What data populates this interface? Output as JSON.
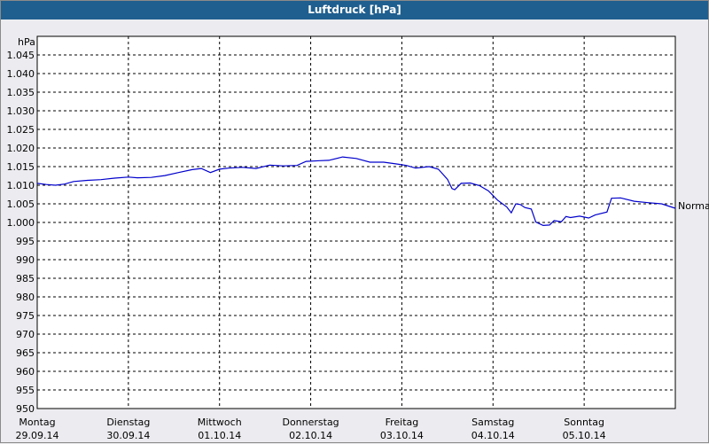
{
  "window": {
    "title": "Luftdruck [hPa]"
  },
  "chart_data": {
    "type": "line",
    "title": "Luftdruck [hPa]",
    "ylabel": "hPa",
    "ylim": [
      950,
      1050
    ],
    "yticks": [
      "1.045",
      "1.040",
      "1.035",
      "1.030",
      "1.025",
      "1.020",
      "1.015",
      "1.010",
      "1.005",
      "1.000",
      "995",
      "990",
      "985",
      "980",
      "975",
      "970",
      "965",
      "960",
      "955",
      "950"
    ],
    "ytick_values": [
      1045,
      1040,
      1035,
      1030,
      1025,
      1020,
      1015,
      1010,
      1005,
      1000,
      995,
      990,
      985,
      980,
      975,
      970,
      965,
      960,
      955,
      950
    ],
    "xlim": [
      0,
      7
    ],
    "x_categories": [
      {
        "day": "Montag",
        "date": "29.09.14"
      },
      {
        "day": "Dienstag",
        "date": "30.09.14"
      },
      {
        "day": "Mittwoch",
        "date": "01.10.14"
      },
      {
        "day": "Donnerstag",
        "date": "02.10.14"
      },
      {
        "day": "Freitag",
        "date": "03.10.14"
      },
      {
        "day": "Samstag",
        "date": "04.10.14"
      },
      {
        "day": "Sonntag",
        "date": "05.10.14"
      }
    ],
    "grid": true,
    "reference_line": {
      "label": "Normal"
    },
    "series": [
      {
        "color": "#0000cc",
        "points": [
          [
            0.0,
            1010.5
          ],
          [
            0.1,
            1010.2
          ],
          [
            0.2,
            1010.0
          ],
          [
            0.3,
            1010.3
          ],
          [
            0.4,
            1011.0
          ],
          [
            0.55,
            1011.3
          ],
          [
            0.7,
            1011.5
          ],
          [
            0.85,
            1011.9
          ],
          [
            1.0,
            1012.2
          ],
          [
            1.1,
            1012.0
          ],
          [
            1.25,
            1012.1
          ],
          [
            1.4,
            1012.6
          ],
          [
            1.55,
            1013.4
          ],
          [
            1.7,
            1014.2
          ],
          [
            1.8,
            1014.5
          ],
          [
            1.9,
            1013.4
          ],
          [
            2.0,
            1014.3
          ],
          [
            2.1,
            1014.6
          ],
          [
            2.25,
            1014.8
          ],
          [
            2.4,
            1014.5
          ],
          [
            2.55,
            1015.4
          ],
          [
            2.7,
            1015.2
          ],
          [
            2.85,
            1015.3
          ],
          [
            2.95,
            1016.4
          ],
          [
            3.1,
            1016.6
          ],
          [
            3.2,
            1016.7
          ],
          [
            3.35,
            1017.6
          ],
          [
            3.5,
            1017.2
          ],
          [
            3.65,
            1016.2
          ],
          [
            3.8,
            1016.2
          ],
          [
            3.95,
            1015.7
          ],
          [
            4.05,
            1015.3
          ],
          [
            4.15,
            1014.6
          ],
          [
            4.3,
            1015.0
          ],
          [
            4.4,
            1014.3
          ],
          [
            4.5,
            1011.6
          ],
          [
            4.55,
            1009.1
          ],
          [
            4.58,
            1008.8
          ],
          [
            4.65,
            1010.5
          ],
          [
            4.75,
            1010.6
          ],
          [
            4.85,
            1009.9
          ],
          [
            4.95,
            1008.5
          ],
          [
            5.05,
            1006.0
          ],
          [
            5.15,
            1004.2
          ],
          [
            5.2,
            1002.6
          ],
          [
            5.25,
            1005.0
          ],
          [
            5.3,
            1004.8
          ],
          [
            5.35,
            1004.0
          ],
          [
            5.42,
            1003.6
          ],
          [
            5.47,
            1000.1
          ],
          [
            5.55,
            999.2
          ],
          [
            5.62,
            999.3
          ],
          [
            5.67,
            1000.5
          ],
          [
            5.75,
            1000.2
          ],
          [
            5.8,
            1001.6
          ],
          [
            5.85,
            1001.3
          ],
          [
            5.95,
            1001.7
          ],
          [
            6.05,
            1001.2
          ],
          [
            6.12,
            1002.0
          ],
          [
            6.25,
            1002.8
          ],
          [
            6.3,
            1006.5
          ],
          [
            6.4,
            1006.6
          ],
          [
            6.55,
            1005.7
          ],
          [
            6.7,
            1005.3
          ],
          [
            6.85,
            1005.0
          ],
          [
            7.0,
            1003.8
          ]
        ]
      }
    ]
  }
}
